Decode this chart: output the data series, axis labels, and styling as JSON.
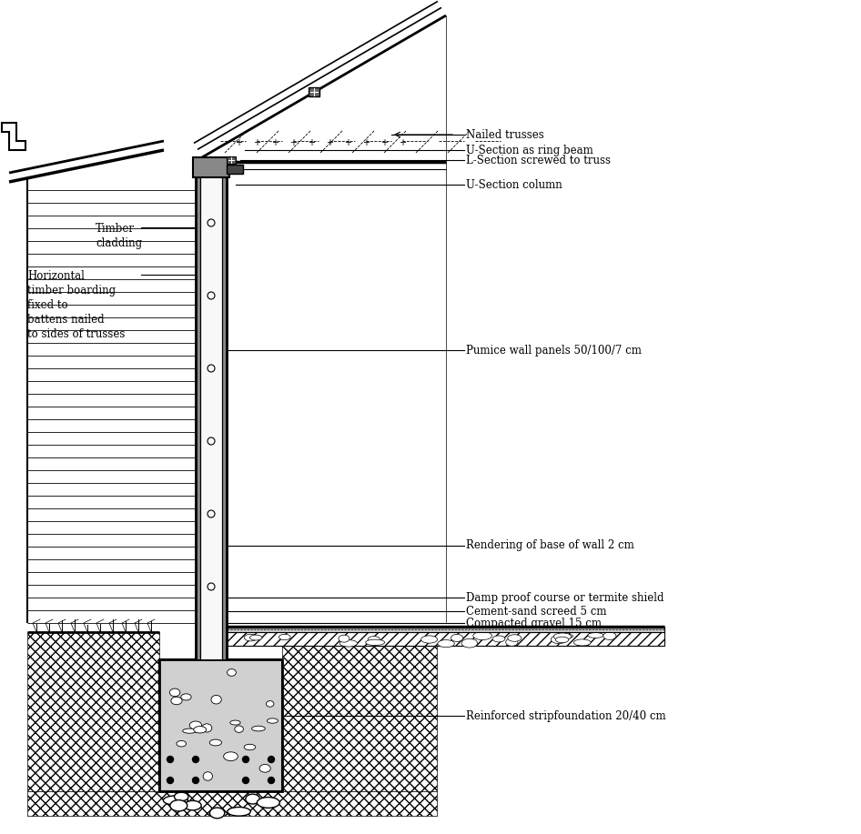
{
  "labels": {
    "nailed_trusses": "Nailed trusses",
    "u_section_ring": "U-Section as ring beam",
    "l_section": "L-Section screwed to truss",
    "u_section_col": "U-Section column",
    "pumice_wall": "Pumice wall panels 50/100/7 cm",
    "rendering": "Rendering of base of wall 2 cm",
    "damp_proof": "Damp proof course or termite shield",
    "cement_sand": "Cement-sand screed 5 cm",
    "compacted_gravel": "Compacted gravel 15 cm",
    "reinforced_strip": "Reinforced stripfoundation 20/40 cm",
    "timber_cladding": "Timber\ncladding",
    "horizontal_timber": "Horizontal\ntimber boarding\nfixed to\nbattens nailed\nto sides of trusses"
  },
  "colors": {
    "background": "#ffffff",
    "steel_fill": "#888888",
    "concrete_fill": "#d0d0d0",
    "dark_fill": "#444444"
  },
  "layout": {
    "fig_w": 9.46,
    "fig_h": 9.17,
    "dpi": 100
  }
}
